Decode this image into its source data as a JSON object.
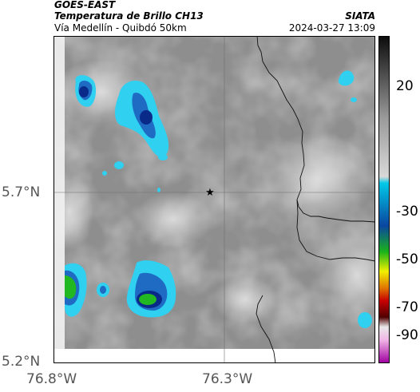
{
  "header": {
    "satellite": "GOES-EAST",
    "product": "Temperatura de Brillo CH13",
    "region": "Vía Medellín - Quibdó 50km",
    "org": "SIATA",
    "datetime": "2024-03-27 13:09"
  },
  "axes": {
    "lat_ticks": [
      "5.7°N",
      "5.2°N"
    ],
    "lon_ticks": [
      "76.8°W",
      "76.3°W"
    ]
  },
  "colorbar": {
    "labels": [
      "20",
      "-30",
      "-50",
      "-70",
      "-90"
    ],
    "stops": [
      "#0c0c0c",
      "#444444",
      "#9a9a9a",
      "#d8d8d8",
      "#00c8e8",
      "#0a46a0",
      "#1ab31a",
      "#f0f000",
      "#e07800",
      "#c80000",
      "#500000",
      "#e8e8e8",
      "#f0b4e6",
      "#a000a0"
    ]
  },
  "map": {
    "marker": "star",
    "background_color": "#8e8e8e",
    "cloud_colors": {
      "cold_edge": "#2fd0f0",
      "blue": "#1f6bc4",
      "deep_blue": "#0a2a8a",
      "green": "#22b822"
    }
  }
}
